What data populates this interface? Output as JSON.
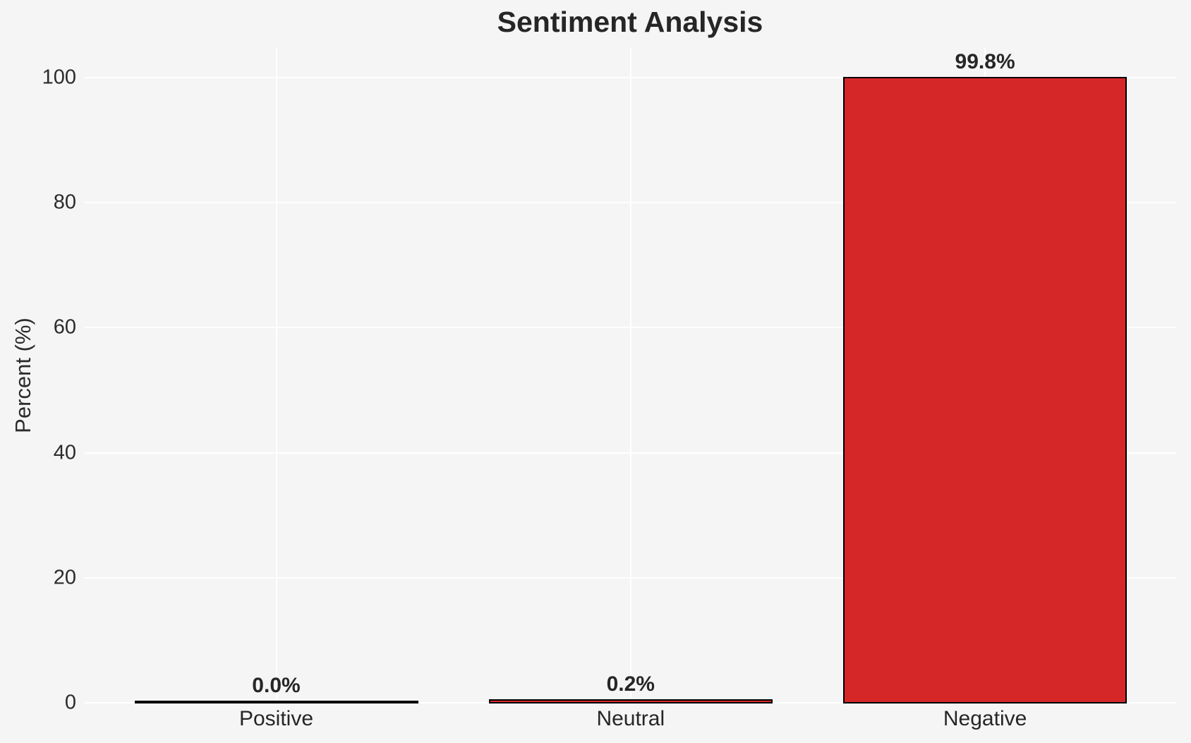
{
  "figure": {
    "background": "#f5f5f6",
    "grid_color": "#ffffff",
    "text_color": "#2b2b2b",
    "title_color": "#262626"
  },
  "chart_data": {
    "type": "bar",
    "title": "Sentiment Analysis",
    "xlabel": "",
    "ylabel": "Percent (%)",
    "categories": [
      "Positive",
      "Neutral",
      "Negative"
    ],
    "values": [
      0.0,
      0.2,
      99.8
    ],
    "bar_labels": [
      "0.0%",
      "0.2%",
      "99.8%"
    ],
    "bar_color": "#d62728",
    "bar_edge_color": "#000000",
    "yticks": [
      0,
      20,
      40,
      60,
      80,
      100
    ],
    "ylim": [
      0,
      104.8
    ],
    "grid": true,
    "legend_position": "none"
  }
}
